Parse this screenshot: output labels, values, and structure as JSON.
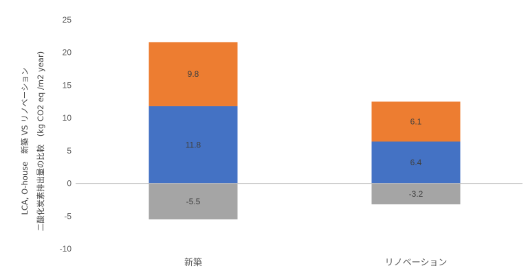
{
  "chart_data": {
    "type": "bar",
    "stacked": true,
    "categories": [
      "新築",
      "リノベーション"
    ],
    "series": [
      {
        "values": [
          -5.5,
          -3.2
        ],
        "color": "#a5a5a5"
      },
      {
        "values": [
          11.8,
          6.4
        ],
        "color": "#4472c4"
      },
      {
        "values": [
          9.8,
          6.1
        ],
        "color": "#ed7d31"
      }
    ],
    "ylim": [
      -10,
      25
    ],
    "yticks": [
      -10,
      -5,
      0,
      5,
      10,
      15,
      20,
      25
    ],
    "ylabel_lines": [
      "LCA, O-house　新築 VS リノベーション",
      "二酸化炭素排出量の比較　(kg CO2 eq /m2 year)"
    ],
    "grid": false,
    "legend": "none"
  }
}
